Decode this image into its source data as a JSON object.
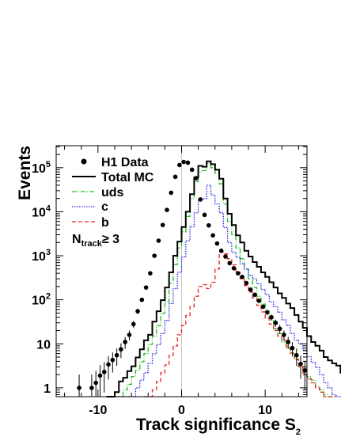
{
  "chart_data": {
    "type": "histogram",
    "xlabel": "Track significance S",
    "xlabel_subscript": "2",
    "ylabel": "Events",
    "xlim": [
      -15,
      15
    ],
    "ylim_log10": [
      -0.2,
      5.5
    ],
    "yscale": "log",
    "x_ticks": [
      -10,
      0,
      10
    ],
    "x_tick_labels": [
      "-10",
      "0",
      "10"
    ],
    "y_ticks": [
      1,
      10,
      100,
      1000,
      10000,
      100000
    ],
    "y_tick_labels": [
      {
        "base": "1",
        "exp": ""
      },
      {
        "base": "10",
        "exp": ""
      },
      {
        "base": "10",
        "exp": "2"
      },
      {
        "base": "10",
        "exp": "3"
      },
      {
        "base": "10",
        "exp": "4"
      },
      {
        "base": "10",
        "exp": "5"
      }
    ],
    "grid": false,
    "legend_position": "top-left",
    "annotation": {
      "base": "N",
      "sub": "track",
      "rest": "≥ 3"
    },
    "bin_edges_start": -15,
    "bin_width": 0.5,
    "series": [
      {
        "name": "Total MC",
        "style": "solid",
        "color": "#000000",
        "values": [
          0,
          0,
          0,
          0,
          0,
          0,
          0,
          0,
          0,
          0,
          0,
          0,
          0.2,
          0.5,
          0.8,
          1.4,
          1.7,
          2.4,
          3.1,
          4.9,
          7.5,
          12,
          16,
          32,
          55,
          98,
          190,
          420,
          1000,
          2100,
          4500,
          10000,
          25000,
          60000,
          110000,
          105000,
          140000,
          120000,
          90000,
          56000,
          20000,
          9000,
          5000,
          2900,
          2000,
          1300,
          960,
          720,
          560,
          420,
          330,
          250,
          190,
          140,
          110,
          82,
          65,
          45,
          32,
          23,
          15,
          11,
          9,
          7,
          5,
          4.2,
          3.6,
          3.2,
          2.2,
          1.8,
          1.4,
          1.3,
          1.1,
          0.9,
          0.9
        ]
      },
      {
        "name": "uds",
        "style": "dashdot",
        "color": "#22c022",
        "values": [
          0,
          0,
          0,
          0,
          0,
          0,
          0,
          0,
          0,
          0,
          0,
          0,
          0,
          0,
          0.4,
          0.6,
          0.9,
          1.2,
          1.8,
          2.5,
          3.9,
          6,
          9.7,
          15,
          26,
          49,
          90,
          240,
          630,
          1500,
          3500,
          7800,
          20000,
          48000,
          81000,
          86000,
          125000,
          100000,
          75000,
          43000,
          15000,
          6000,
          3000,
          1500,
          860,
          500,
          300,
          190,
          120,
          80,
          55,
          35,
          22,
          17,
          11,
          8,
          6,
          4.5,
          3,
          2.5,
          1.8,
          1.5,
          1.1,
          0.9,
          0.7,
          0.5,
          0.4,
          0,
          0,
          0,
          0,
          0,
          0,
          0,
          0
        ]
      },
      {
        "name": "c",
        "style": "dotted",
        "color": "#2222e6",
        "values": [
          0,
          0,
          0,
          0,
          0,
          0,
          0,
          0,
          0,
          0,
          0,
          0,
          0,
          0,
          0,
          0.2,
          0.3,
          0.5,
          0.6,
          1,
          1.5,
          2.2,
          3.6,
          5.9,
          9.6,
          17,
          34,
          82,
          180,
          420,
          930,
          2200,
          4600,
          9400,
          18000,
          20000,
          40000,
          24000,
          15000,
          9500,
          4400,
          2000,
          1200,
          920,
          660,
          500,
          360,
          300,
          230,
          170,
          130,
          90,
          70,
          52,
          35,
          26,
          17,
          12,
          10,
          7.2,
          5.1,
          3.8,
          2.9,
          2,
          1.3,
          1,
          0.7,
          0.5,
          0.4,
          0,
          0,
          0,
          0,
          0,
          0
        ]
      },
      {
        "name": "b",
        "style": "dashed",
        "color": "#e62222",
        "values": [
          0,
          0,
          0,
          0,
          0,
          0,
          0,
          0,
          0,
          0,
          0,
          0,
          0,
          0,
          0,
          0,
          0,
          0,
          0,
          0,
          0,
          0.4,
          0.6,
          0.9,
          1.4,
          2.2,
          3.3,
          5.5,
          9,
          16,
          26,
          44,
          70,
          120,
          200,
          220,
          180,
          250,
          500,
          1200,
          1100,
          860,
          620,
          420,
          300,
          210,
          150,
          110,
          75,
          53,
          38,
          28,
          20,
          15,
          12,
          8.6,
          6.2,
          4.4,
          3.1,
          2.2,
          1.6,
          1.3,
          1,
          0.8,
          0.6,
          0.5,
          0.4,
          0,
          0,
          0,
          0,
          0,
          0,
          0,
          0
        ]
      }
    ],
    "data_points": {
      "name": "H1 Data",
      "color": "#000000",
      "x": [
        -12.25,
        -10.75,
        -10.25,
        -9.75,
        -9.25,
        -8.75,
        -8.25,
        -7.75,
        -7.25,
        -6.75,
        -6.25,
        -5.75,
        -5.25,
        -4.75,
        -4.25,
        -3.75,
        -3.25,
        -2.75,
        -2.25,
        -1.75,
        -1.25,
        -0.75,
        -0.25,
        0.25,
        0.75,
        1.25,
        1.75,
        2.25,
        2.75,
        3.25,
        3.75,
        4.25,
        4.75,
        5.25,
        5.75,
        6.25,
        6.75,
        7.25,
        7.75,
        8.25,
        8.75,
        9.25,
        9.75,
        10.25,
        10.75,
        11.25,
        11.75,
        12.25,
        12.75,
        13.25,
        13.75,
        14.25,
        14.75
      ],
      "y": [
        1,
        1,
        1.3,
        1.9,
        2.3,
        3.4,
        4.3,
        5.5,
        7.5,
        11,
        16,
        28,
        55,
        100,
        190,
        400,
        1000,
        2200,
        5000,
        11000,
        27000,
        62000,
        115000,
        135000,
        130000,
        90000,
        58000,
        19000,
        8500,
        4900,
        2900,
        1900,
        1300,
        960,
        680,
        520,
        400,
        330,
        240,
        170,
        130,
        95,
        70,
        52,
        40,
        30,
        22,
        16,
        11,
        8,
        5.5,
        3.5,
        2.5
      ]
    }
  }
}
